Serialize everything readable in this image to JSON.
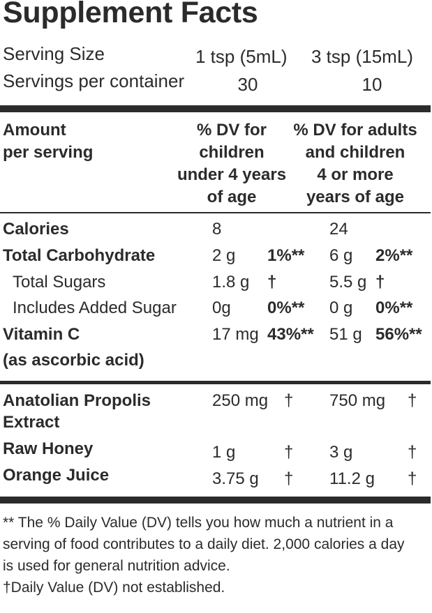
{
  "title": "Supplement Facts",
  "serving": {
    "size_label": "Serving Size",
    "size_a": "1 tsp (5mL)",
    "size_b": "3 tsp (15mL)",
    "per_label": "Servings per container",
    "per_a": "30",
    "per_b": "10"
  },
  "header": {
    "amount": [
      "Amount",
      "per serving"
    ],
    "col_a": [
      "% DV for",
      "children",
      "under 4 years",
      "of age"
    ],
    "col_b": [
      "% DV for adults",
      "and children",
      "4 or more",
      "years of age"
    ]
  },
  "rows": [
    {
      "label": "Calories",
      "a_amt": "8",
      "a_dv": "",
      "b_amt": "24",
      "b_dv": ""
    },
    {
      "label": "Total Carbohydrate",
      "a_amt": "2 g",
      "a_dv": "1%**",
      "b_amt": "6 g",
      "b_dv": "2%**"
    },
    {
      "label": "Total Sugars",
      "a_amt": "1.8 g",
      "a_dv": "†",
      "b_amt": "5.5 g",
      "b_dv": "†"
    },
    {
      "label": "Includes Added Sugar",
      "a_amt": "0g",
      "a_dv": "0%**",
      "b_amt": "0 g",
      "b_dv": "0%**"
    },
    {
      "label": "Vitamin C",
      "label2": "(as ascorbic acid)",
      "a_amt": "17 mg",
      "a_dv": "43%**",
      "b_amt": "51 g",
      "b_dv": "56%**"
    }
  ],
  "rows2": [
    {
      "label": "Anatolian Propolis",
      "label2": "Extract",
      "a_amt": "250 mg",
      "a_dv": "†",
      "b_amt": "750 mg",
      "b_dv": "†"
    },
    {
      "label": "Raw Honey",
      "a_amt": "1 g",
      "a_dv": "†",
      "b_amt": "3 g",
      "b_dv": "†"
    },
    {
      "label": "Orange Juice",
      "a_amt": "3.75 g",
      "a_dv": "†",
      "b_amt": "11.2 g",
      "b_dv": "†"
    }
  ],
  "footnote": [
    "** The % Daily Value (DV) tells you how much a nutrient in a",
    "serving of food contributes to a daily diet. 2,000 calories a day",
    "is used for general nutrition advice.",
    "†Daily Value (DV) not established."
  ]
}
